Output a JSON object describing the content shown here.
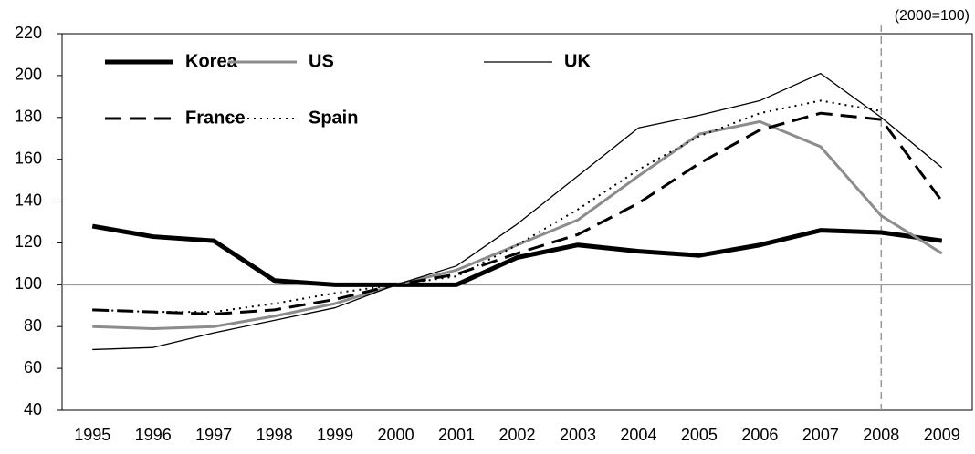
{
  "chart_data": {
    "type": "line",
    "annotation": "(2000=100)",
    "categories": [
      "1995",
      "1996",
      "1997",
      "1998",
      "1999",
      "2000",
      "2001",
      "2002",
      "2003",
      "2004",
      "2005",
      "2006",
      "2007",
      "2008",
      "2009"
    ],
    "ylim": [
      40,
      220
    ],
    "yticks": [
      40,
      60,
      80,
      100,
      120,
      140,
      160,
      180,
      200,
      220
    ],
    "hline": 100,
    "vline": "2008",
    "series": [
      {
        "name": "Korea",
        "color": "#000000",
        "width": 5,
        "dash": "none",
        "values": [
          128,
          123,
          121,
          102,
          100,
          100,
          100,
          113,
          119,
          116,
          114,
          119,
          126,
          125,
          121
        ]
      },
      {
        "name": "US",
        "color": "#8c8c8c",
        "width": 3,
        "dash": "none",
        "values": [
          80,
          79,
          80,
          85,
          91,
          100,
          107,
          119,
          131,
          152,
          172,
          178,
          166,
          133,
          115
        ]
      },
      {
        "name": "UK",
        "color": "#000000",
        "width": 1.3,
        "dash": "none",
        "values": [
          69,
          70,
          77,
          83,
          89,
          100,
          109,
          129,
          152,
          175,
          181,
          188,
          201,
          180,
          156
        ]
      },
      {
        "name": "France",
        "color": "#000000",
        "width": 3,
        "dash": "18,9",
        "values": [
          88,
          87,
          86,
          88,
          93,
          100,
          105,
          115,
          124,
          139,
          158,
          174,
          182,
          179,
          140
        ]
      },
      {
        "name": "Spain",
        "color": "#000000",
        "width": 2,
        "dash": "2,5",
        "values": [
          88,
          87,
          87,
          91,
          96,
          100,
          104,
          119,
          136,
          155,
          171,
          182,
          188,
          183,
          null
        ]
      }
    ]
  }
}
